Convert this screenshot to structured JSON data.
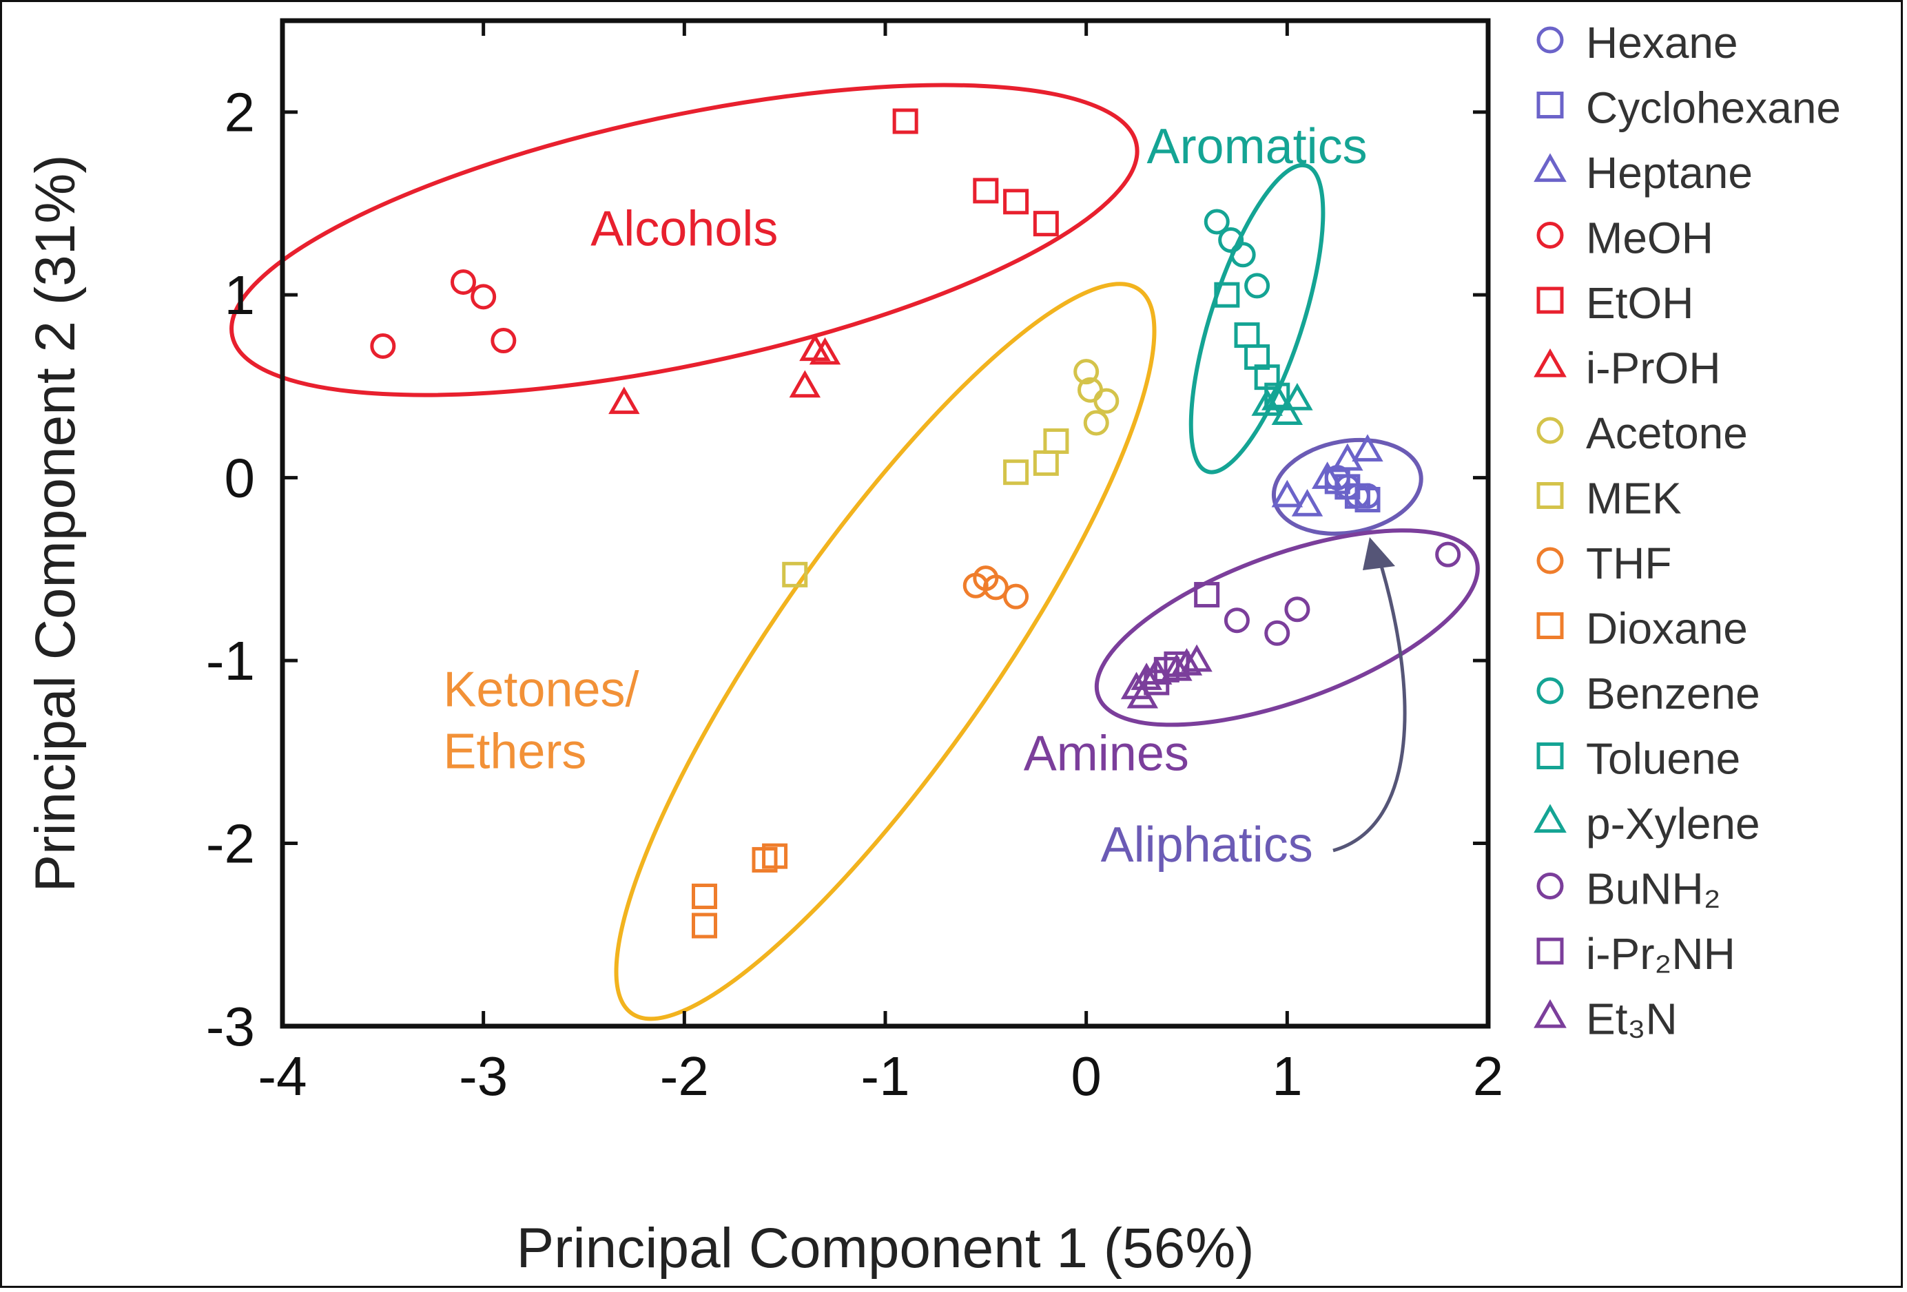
{
  "chart_data": {
    "type": "scatter",
    "xlabel": "Principal Component 1 (56%)",
    "ylabel": "Principal Component 2 (31%)",
    "xlim": [
      -4,
      2
    ],
    "ylim": [
      -3,
      2.5
    ],
    "xticks": [
      -4,
      -3,
      -2,
      -1,
      0,
      1,
      2
    ],
    "yticks": [
      2,
      1,
      0,
      -1,
      -2,
      -3
    ],
    "xtick_labels": [
      "-4",
      "-3",
      "-2",
      "-1",
      "0",
      "1",
      "2"
    ],
    "ytick_labels": [
      "2",
      "1",
      "0",
      "-1",
      "-2",
      "-3"
    ],
    "colors": {
      "aliphatic": "#6b63c9",
      "alcohol": "#e8202e",
      "ketone": "#d4c34a",
      "ether": "#ef7d2b",
      "aromatic": "#14a494",
      "amine": "#7b3e9b",
      "ellipse_ketone": "#f2b31e"
    },
    "series": [
      {
        "name": "Hexane",
        "marker": "circle",
        "color": "#6b63c9",
        "points": [
          [
            1.3,
            -0.05
          ],
          [
            1.35,
            -0.1
          ],
          [
            1.4,
            -0.1
          ],
          [
            1.25,
            0.0
          ]
        ]
      },
      {
        "name": "Cyclohexane",
        "marker": "square",
        "color": "#6b63c9",
        "points": [
          [
            1.3,
            -0.05
          ],
          [
            1.35,
            -0.1
          ],
          [
            1.4,
            -0.12
          ],
          [
            1.25,
            -0.02
          ]
        ]
      },
      {
        "name": "Heptane",
        "marker": "triangle",
        "color": "#6b63c9",
        "points": [
          [
            1.0,
            -0.1
          ],
          [
            1.1,
            -0.15
          ],
          [
            1.2,
            0.0
          ],
          [
            1.3,
            0.1
          ],
          [
            1.4,
            0.15
          ]
        ]
      },
      {
        "name": "MeOH",
        "marker": "circle",
        "color": "#e8202e",
        "points": [
          [
            -3.5,
            0.72
          ],
          [
            -3.1,
            1.07
          ],
          [
            -3.0,
            0.99
          ],
          [
            -2.9,
            0.75
          ]
        ]
      },
      {
        "name": "EtOH",
        "marker": "square",
        "color": "#e8202e",
        "points": [
          [
            -0.9,
            1.95
          ],
          [
            -0.5,
            1.57
          ],
          [
            -0.35,
            1.51
          ],
          [
            -0.2,
            1.39
          ]
        ]
      },
      {
        "name": "i-PrOH",
        "marker": "triangle",
        "color": "#e8202e",
        "points": [
          [
            -2.3,
            0.41
          ],
          [
            -1.4,
            0.5
          ],
          [
            -1.35,
            0.7
          ],
          [
            -1.3,
            0.68
          ]
        ]
      },
      {
        "name": "Acetone",
        "marker": "circle",
        "color": "#d4c34a",
        "points": [
          [
            0.0,
            0.58
          ],
          [
            0.02,
            0.48
          ],
          [
            0.1,
            0.42
          ],
          [
            0.05,
            0.3
          ]
        ]
      },
      {
        "name": "MEK",
        "marker": "square",
        "color": "#d4c34a",
        "points": [
          [
            -1.45,
            -0.53
          ],
          [
            -0.35,
            0.03
          ],
          [
            -0.2,
            0.08
          ],
          [
            -0.15,
            0.2
          ]
        ]
      },
      {
        "name": "THF",
        "marker": "circle",
        "color": "#ef7d2b",
        "points": [
          [
            -0.55,
            -0.59
          ],
          [
            -0.5,
            -0.55
          ],
          [
            -0.45,
            -0.6
          ],
          [
            -0.35,
            -0.65
          ]
        ]
      },
      {
        "name": "Dioxane",
        "marker": "square",
        "color": "#ef7d2b",
        "points": [
          [
            -1.9,
            -2.29
          ],
          [
            -1.9,
            -2.45
          ],
          [
            -1.6,
            -2.09
          ],
          [
            -1.55,
            -2.07
          ]
        ]
      },
      {
        "name": "Benzene",
        "marker": "circle",
        "color": "#14a494",
        "points": [
          [
            0.65,
            1.4
          ],
          [
            0.72,
            1.3
          ],
          [
            0.78,
            1.22
          ],
          [
            0.85,
            1.05
          ]
        ]
      },
      {
        "name": "Toluene",
        "marker": "square",
        "color": "#14a494",
        "points": [
          [
            0.7,
            1.0
          ],
          [
            0.8,
            0.78
          ],
          [
            0.85,
            0.66
          ],
          [
            0.9,
            0.55
          ],
          [
            0.95,
            0.45
          ]
        ]
      },
      {
        "name": "p-Xylene",
        "marker": "triangle",
        "color": "#14a494",
        "points": [
          [
            0.9,
            0.4
          ],
          [
            0.95,
            0.43
          ],
          [
            1.0,
            0.35
          ],
          [
            1.05,
            0.43
          ]
        ]
      },
      {
        "name": "BuNH₂",
        "marker": "circle",
        "color": "#7b3e9b",
        "points": [
          [
            0.75,
            -0.78
          ],
          [
            0.95,
            -0.85
          ],
          [
            1.05,
            -0.72
          ],
          [
            1.8,
            -0.42
          ]
        ]
      },
      {
        "name": "i-Pr₂NH",
        "marker": "square",
        "color": "#7b3e9b",
        "points": [
          [
            0.6,
            -0.64
          ],
          [
            0.4,
            -1.05
          ],
          [
            0.35,
            -1.12
          ],
          [
            0.45,
            -1.02
          ]
        ]
      },
      {
        "name": "Et₃N",
        "marker": "triangle",
        "color": "#7b3e9b",
        "points": [
          [
            0.25,
            -1.15
          ],
          [
            0.3,
            -1.1
          ],
          [
            0.35,
            -1.07
          ],
          [
            0.45,
            -1.05
          ],
          [
            0.5,
            -1.02
          ],
          [
            0.55,
            -1.0
          ],
          [
            0.28,
            -1.2
          ]
        ]
      }
    ],
    "groups": [
      {
        "label": "Alcohols",
        "lines": [
          "Alcohols"
        ],
        "color": "#e8202e",
        "label_at": [
          -2.0,
          1.27
        ],
        "ellipse": {
          "cx": -2.0,
          "cy": 1.3,
          "rx": 2.3,
          "ry": 0.68,
          "angle": 12
        }
      },
      {
        "label": "Ketones/ Ethers",
        "lines": [
          "Ketones/",
          "Ethers"
        ],
        "color": "#f29137",
        "label_at": [
          -3.2,
          -1.25
        ],
        "ellipse": {
          "cx": -1.0,
          "cy": -0.95,
          "rx": 2.2,
          "ry": 0.6,
          "angle": 55
        }
      },
      {
        "label": "Aromatics",
        "lines": [
          "Aromatics"
        ],
        "color": "#14a494",
        "label_at": [
          0.85,
          1.72
        ],
        "ellipse": {
          "cx": 0.85,
          "cy": 0.87,
          "rx": 0.8,
          "ry": 0.25,
          "angle": 72
        }
      },
      {
        "label": "Aliphatics",
        "lines": [
          "Aliphatics"
        ],
        "color": "#6b5bb5",
        "label_at": [
          0.6,
          -2.1
        ],
        "ellipse": {
          "cx": 1.3,
          "cy": -0.05,
          "rx": 0.37,
          "ry": 0.25,
          "angle": 10
        }
      },
      {
        "label": "Amines",
        "lines": [
          "Amines"
        ],
        "color": "#7b3e9b",
        "label_at": [
          0.1,
          -1.6
        ],
        "ellipse": {
          "cx": 1.0,
          "cy": -0.82,
          "rx": 1.0,
          "ry": 0.4,
          "angle": 20
        }
      }
    ],
    "legend": [
      {
        "label": "Hexane",
        "marker": "circle",
        "color": "#6b63c9"
      },
      {
        "label": "Cyclohexane",
        "marker": "square",
        "color": "#6b63c9"
      },
      {
        "label": "Heptane",
        "marker": "triangle",
        "color": "#6b63c9"
      },
      {
        "label": "MeOH",
        "marker": "circle",
        "color": "#e8202e"
      },
      {
        "label": "EtOH",
        "marker": "square",
        "color": "#e8202e"
      },
      {
        "label": "i-PrOH",
        "marker": "triangle",
        "color": "#e8202e"
      },
      {
        "label": "Acetone",
        "marker": "circle",
        "color": "#d4c34a"
      },
      {
        "label": "MEK",
        "marker": "square",
        "color": "#d4c34a"
      },
      {
        "label": "THF",
        "marker": "circle",
        "color": "#ef7d2b"
      },
      {
        "label": "Dioxane",
        "marker": "square",
        "color": "#ef7d2b"
      },
      {
        "label": "Benzene",
        "marker": "circle",
        "color": "#14a494"
      },
      {
        "label": "Toluene",
        "marker": "square",
        "color": "#14a494"
      },
      {
        "label": "p-Xylene",
        "marker": "triangle",
        "color": "#14a494"
      },
      {
        "label": "BuNH₂",
        "marker": "circle",
        "color": "#7b3e9b"
      },
      {
        "label": "i-Pr₂NH",
        "marker": "square",
        "color": "#7b3e9b"
      },
      {
        "label": "Et₃N",
        "marker": "triangle",
        "color": "#7b3e9b"
      }
    ],
    "legend_position": "right"
  }
}
